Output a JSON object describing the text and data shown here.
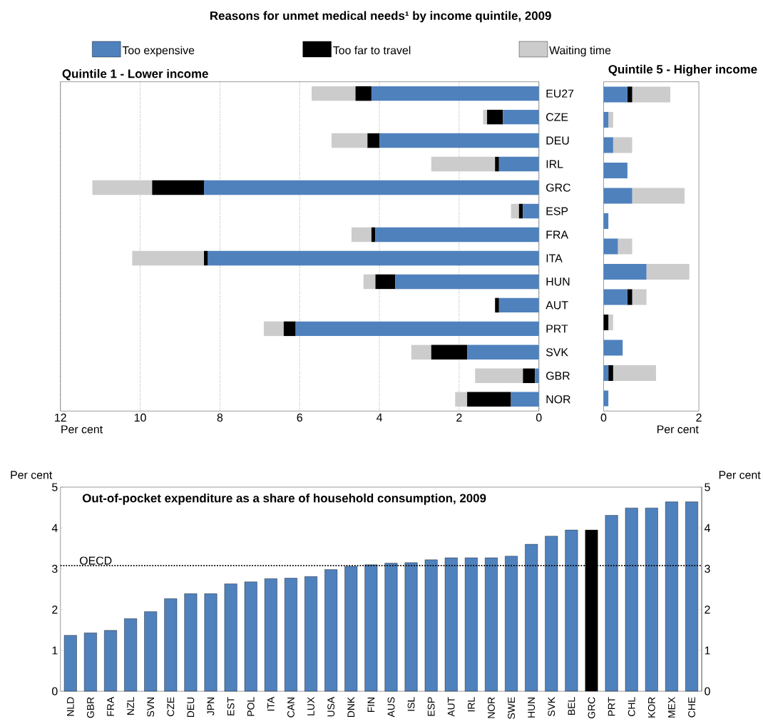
{
  "chart_data": [
    {
      "type": "bar",
      "orientation": "horizontal",
      "stacked": true,
      "title": "Reasons for unmet medical needs¹ by income quintile, 2009",
      "subtitle": "Quintile 1 - Lower income",
      "xlabel": "Per cent",
      "categories": [
        "EU27",
        "CZE",
        "DEU",
        "IRL",
        "GRC",
        "ESP",
        "FRA",
        "ITA",
        "HUN",
        "AUT",
        "PRT",
        "SVK",
        "GBR",
        "NOR"
      ],
      "series": [
        {
          "name": "Too expensive",
          "color": "#4f81bd",
          "values": [
            4.2,
            0.9,
            4.0,
            1.0,
            8.4,
            0.4,
            4.1,
            8.3,
            3.6,
            1.0,
            6.1,
            1.8,
            0.1,
            0.7
          ]
        },
        {
          "name": "Too far to travel",
          "color": "#000000",
          "values": [
            0.4,
            0.4,
            0.3,
            0.1,
            1.3,
            0.1,
            0.1,
            0.1,
            0.5,
            0.1,
            0.3,
            0.9,
            0.3,
            1.1
          ]
        },
        {
          "name": "Waiting time",
          "color": "#cccccc",
          "values": [
            1.1,
            0.1,
            0.9,
            1.6,
            1.5,
            0.2,
            0.5,
            1.8,
            0.3,
            0.0,
            0.5,
            0.5,
            1.2,
            0.3
          ]
        }
      ],
      "xlim": [
        12,
        0
      ],
      "xticks": [
        12,
        10,
        8,
        6,
        4,
        2,
        0
      ],
      "grid": "x",
      "legend": "top"
    },
    {
      "type": "bar",
      "orientation": "horizontal",
      "stacked": true,
      "title": "Quintile 5 - Higher income",
      "xlabel": "Per cent",
      "categories": [
        null,
        null,
        null,
        null,
        null,
        null,
        null,
        null,
        null,
        null,
        null,
        null,
        null
      ],
      "series": [
        {
          "color": "#4f81bd",
          "values": [
            0.5,
            0.1,
            0.2,
            0.5,
            0.6,
            0.1,
            0.3,
            0.9,
            0.5,
            0.0,
            0.4,
            0.1,
            0.1
          ]
        },
        {
          "color": "#000000",
          "values": [
            0.1,
            0.0,
            0.0,
            0.0,
            0.0,
            0.0,
            0.0,
            0.0,
            0.1,
            0.1,
            0.0,
            0.1,
            0.0
          ]
        },
        {
          "color": "#cccccc",
          "values": [
            0.8,
            0.1,
            0.4,
            0.0,
            1.1,
            0.0,
            0.3,
            0.9,
            0.3,
            0.1,
            0.0,
            0.9,
            0.0
          ]
        }
      ],
      "xlim": [
        0,
        2
      ],
      "xticks": [
        0,
        2
      ]
    },
    {
      "type": "bar",
      "title": "Out-of-pocket expenditure as a share of household consumption, 2009",
      "ylabel": "Per cent",
      "y2label": "Per cent",
      "categories": [
        "NLD",
        "GBR",
        "FRA",
        "NZL",
        "SVN",
        "CZE",
        "DEU",
        "JPN",
        "EST",
        "POL",
        "ITA",
        "CAN",
        "LUX",
        "USA",
        "DNK",
        "FIN",
        "AUS",
        "ISL",
        "ESP",
        "AUT",
        "IRL",
        "NOR",
        "SWE",
        "HUN",
        "SVK",
        "BEL",
        "GRC",
        "PRT",
        "CHL",
        "KOR",
        "MEX",
        "CHE"
      ],
      "values": [
        1.37,
        1.43,
        1.49,
        1.78,
        1.95,
        2.27,
        2.39,
        2.39,
        2.63,
        2.68,
        2.76,
        2.77,
        2.81,
        2.98,
        3.06,
        3.1,
        3.14,
        3.15,
        3.22,
        3.27,
        3.27,
        3.27,
        3.31,
        3.6,
        3.8,
        3.95,
        3.95,
        4.31,
        4.49,
        4.49,
        4.64,
        4.64
      ],
      "colors": [
        "#4f81bd",
        "#4f81bd",
        "#4f81bd",
        "#4f81bd",
        "#4f81bd",
        "#4f81bd",
        "#4f81bd",
        "#4f81bd",
        "#4f81bd",
        "#4f81bd",
        "#4f81bd",
        "#4f81bd",
        "#4f81bd",
        "#4f81bd",
        "#4f81bd",
        "#4f81bd",
        "#4f81bd",
        "#4f81bd",
        "#4f81bd",
        "#4f81bd",
        "#4f81bd",
        "#4f81bd",
        "#4f81bd",
        "#4f81bd",
        "#4f81bd",
        "#4f81bd",
        "#000000",
        "#4f81bd",
        "#4f81bd",
        "#4f81bd",
        "#4f81bd",
        "#4f81bd"
      ],
      "ylim": [
        0,
        5
      ],
      "yticks": [
        0,
        1,
        2,
        3,
        4,
        5
      ],
      "y2lim": [
        0,
        5
      ],
      "y2ticks": [
        0,
        1,
        2,
        3,
        4,
        5
      ],
      "ref_lines": [
        {
          "axis": "y",
          "value": 3.08,
          "label": "OECD",
          "line_style": "dotted",
          "color": "#000000"
        }
      ]
    }
  ]
}
